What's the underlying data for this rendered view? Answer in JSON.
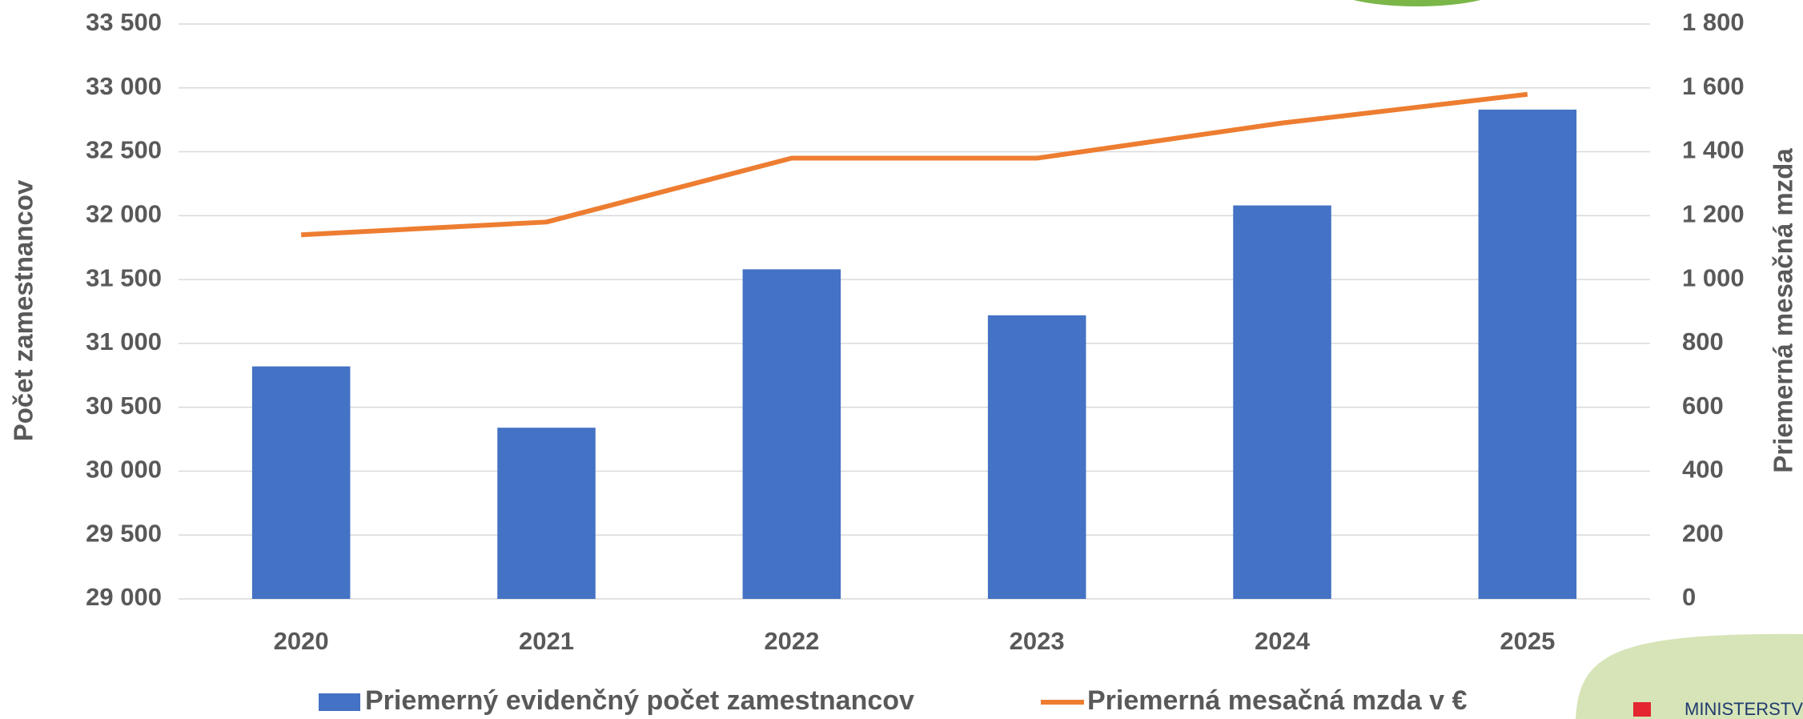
{
  "chart_data": {
    "type": "bar",
    "categories": [
      "2020",
      "2021",
      "2022",
      "2023",
      "2024",
      "2025"
    ],
    "series": [
      {
        "name": "Priemerný evidenčný počet zamestnancov",
        "type": "bar",
        "color": "#4472c4",
        "values": [
          30820,
          30340,
          31580,
          31220,
          32080,
          32830
        ]
      },
      {
        "name": "Priemerná mesačná mzda v €",
        "type": "line",
        "axis": "y2",
        "color": "#ed7d31",
        "values": [
          1140,
          1180,
          1380,
          1380,
          1490,
          1580
        ]
      }
    ],
    "y_label": "Počet zamestnancov",
    "y2_label": "Priemerná mesačná mzda",
    "ylim": [
      29000,
      33500
    ],
    "yticks": [
      {
        "value": 29000,
        "label": "29 000"
      },
      {
        "value": 29500,
        "label": "29 500"
      },
      {
        "value": 30000,
        "label": "30 000"
      },
      {
        "value": 30500,
        "label": "30 500"
      },
      {
        "value": 31000,
        "label": "31 000"
      },
      {
        "value": 31500,
        "label": "31 500"
      },
      {
        "value": 32000,
        "label": "32 000"
      },
      {
        "value": 32500,
        "label": "32 500"
      },
      {
        "value": 33000,
        "label": "33 000"
      },
      {
        "value": 33500,
        "label": "33 500"
      }
    ],
    "y2lim": [
      0,
      1800
    ],
    "y2ticks": [
      0,
      200,
      400,
      600,
      800,
      {
        "value": 1000,
        "label": "1 000"
      },
      {
        "value": 1200,
        "label": "1 200"
      },
      {
        "value": 1400,
        "label": "1 400"
      },
      {
        "value": 1600,
        "label": "1 600"
      },
      {
        "value": 1800,
        "label": "1 800"
      }
    ],
    "grid": true,
    "legend": "bottom"
  },
  "logo": {
    "text": "MINISTERSTVO"
  }
}
